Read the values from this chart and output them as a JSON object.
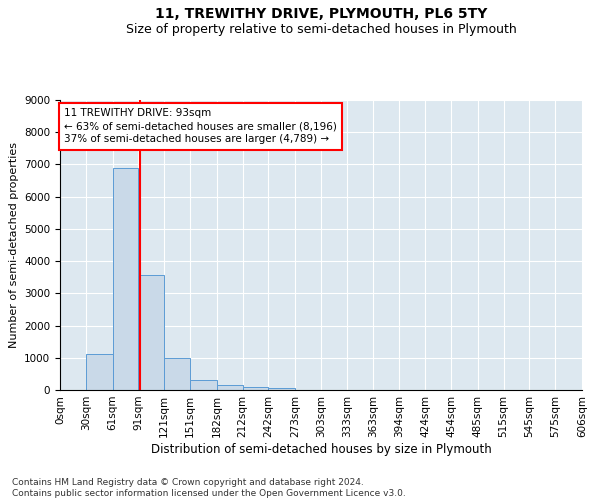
{
  "title": "11, TREWITHY DRIVE, PLYMOUTH, PL6 5TY",
  "subtitle": "Size of property relative to semi-detached houses in Plymouth",
  "xlabel": "Distribution of semi-detached houses by size in Plymouth",
  "ylabel": "Number of semi-detached properties",
  "bar_color": "#c9d9e8",
  "bar_edge_color": "#5b9bd5",
  "background_color": "#dde8f0",
  "grid_color": "#ffffff",
  "bin_edges": [
    0,
    30,
    61,
    91,
    121,
    151,
    182,
    212,
    242,
    273,
    303,
    333,
    363,
    394,
    424,
    454,
    485,
    515,
    545,
    575,
    606
  ],
  "bin_labels": [
    "0sqm",
    "30sqm",
    "61sqm",
    "91sqm",
    "121sqm",
    "151sqm",
    "182sqm",
    "212sqm",
    "242sqm",
    "273sqm",
    "303sqm",
    "333sqm",
    "363sqm",
    "394sqm",
    "424sqm",
    "454sqm",
    "485sqm",
    "515sqm",
    "545sqm",
    "575sqm",
    "606sqm"
  ],
  "bar_heights": [
    0,
    1130,
    6880,
    3570,
    1000,
    320,
    140,
    100,
    70,
    0,
    0,
    0,
    0,
    0,
    0,
    0,
    0,
    0,
    0,
    0
  ],
  "property_size": 93,
  "annotation_line1": "11 TREWITHY DRIVE: 93sqm",
  "annotation_line2": "← 63% of semi-detached houses are smaller (8,196)",
  "annotation_line3": "37% of semi-detached houses are larger (4,789) →",
  "annotation_box_color": "white",
  "annotation_box_edge_color": "red",
  "vline_color": "red",
  "ylim": [
    0,
    9000
  ],
  "yticks": [
    0,
    1000,
    2000,
    3000,
    4000,
    5000,
    6000,
    7000,
    8000,
    9000
  ],
  "footnote": "Contains HM Land Registry data © Crown copyright and database right 2024.\nContains public sector information licensed under the Open Government Licence v3.0.",
  "title_fontsize": 10,
  "subtitle_fontsize": 9,
  "xlabel_fontsize": 8.5,
  "ylabel_fontsize": 8,
  "tick_fontsize": 7.5,
  "annotation_fontsize": 7.5,
  "footnote_fontsize": 6.5
}
